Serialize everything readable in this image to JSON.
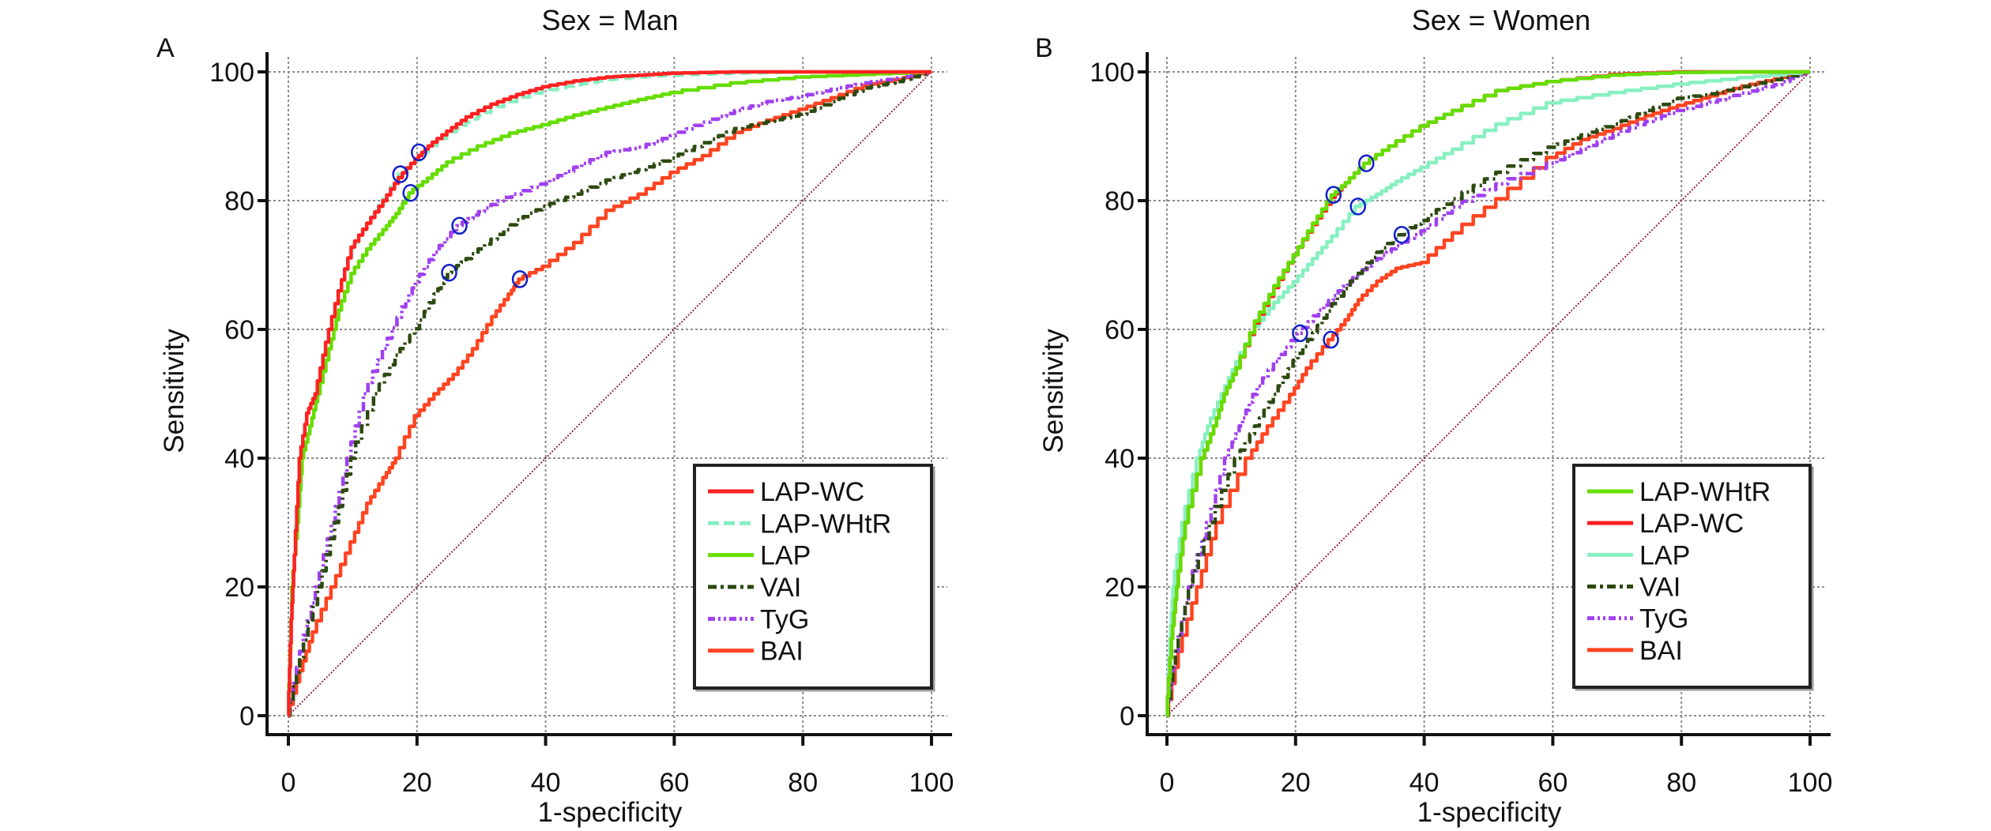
{
  "figure": {
    "panels": [
      {
        "letter": "A",
        "title": "Sex = Man"
      },
      {
        "letter": "B",
        "title": "Sex = Women"
      }
    ]
  },
  "chart_data": [
    {
      "type": "line",
      "panel": "A",
      "title": "Sex = Man",
      "xlabel": "1-specificity",
      "ylabel": "Sensitivity",
      "xlim": [
        0,
        100
      ],
      "ylim": [
        0,
        100
      ],
      "xticks": [
        0,
        20,
        40,
        60,
        80,
        100
      ],
      "yticks": [
        0,
        20,
        40,
        60,
        80,
        100
      ],
      "grid": true,
      "legend_position": "bottom-right",
      "reference_line": {
        "name": "chance",
        "x": [
          0,
          100
        ],
        "y": [
          0,
          100
        ],
        "color": "#8b1a3a"
      },
      "series": [
        {
          "name": "LAP-WC",
          "color": "#ff2222",
          "style": "solid",
          "x": [
            0,
            0.5,
            1,
            1.8,
            3,
            4.3,
            6,
            8,
            10,
            12.5,
            15,
            17.4,
            20,
            22,
            25,
            28,
            32,
            36,
            40,
            45,
            50,
            55,
            60,
            70,
            80,
            90,
            100
          ],
          "y": [
            0,
            15,
            25,
            40,
            47,
            50,
            58,
            66,
            72.8,
            76.5,
            80,
            83.6,
            86.5,
            88.5,
            90.8,
            93,
            95,
            96.5,
            97.7,
            98.6,
            99.2,
            99.5,
            99.8,
            100,
            100,
            100,
            100
          ],
          "cutoff": {
            "x": 20.3,
            "y": 87.5
          }
        },
        {
          "name": "LAP-WHtR",
          "color": "#88eec0",
          "style": "dashed",
          "x": [
            0,
            0.5,
            1,
            1.8,
            3,
            4.3,
            6,
            8,
            10,
            12.5,
            15,
            17.4,
            20,
            22,
            25,
            28,
            32,
            36,
            40,
            45,
            50,
            55,
            60,
            70,
            80,
            90,
            100
          ],
          "y": [
            0,
            16,
            26,
            40,
            47,
            50,
            58,
            66,
            72.5,
            76.5,
            80.2,
            84.1,
            86.2,
            88,
            90.2,
            92.2,
            94.2,
            95.8,
            97,
            98,
            98.8,
            99.2,
            99.5,
            99.8,
            100,
            100,
            100
          ],
          "cutoff": {
            "x": 17.4,
            "y": 84.1
          }
        },
        {
          "name": "LAP",
          "color": "#66dd00",
          "style": "solid",
          "x": [
            0,
            0.6,
            1.5,
            2.2,
            3.5,
            4.7,
            6.5,
            8,
            10,
            12.5,
            15,
            17,
            19,
            22,
            25,
            30,
            35,
            40,
            45,
            50,
            55,
            60,
            70,
            80,
            90,
            100
          ],
          "y": [
            0,
            20,
            30,
            40,
            45,
            50,
            57,
            63,
            68.7,
            72.5,
            75.5,
            78,
            81.2,
            83.5,
            86,
            88.5,
            90.5,
            91.8,
            93.3,
            94.5,
            95.7,
            96.8,
            98.3,
            99.2,
            99.6,
            100
          ],
          "cutoff": {
            "x": 19.0,
            "y": 81.2
          }
        },
        {
          "name": "VAI",
          "color": "#2d4a10",
          "style": "dashdot",
          "x": [
            0,
            2,
            4.9,
            7.5,
            10,
            13.7,
            17,
            20,
            23,
            25,
            28,
            32,
            36,
            40,
            45,
            50,
            55,
            60,
            65,
            70,
            75,
            80,
            85,
            90,
            95,
            100
          ],
          "y": [
            0,
            9,
            20,
            30,
            40,
            50,
            56,
            60.1,
            65.5,
            68.8,
            71,
            74,
            77,
            79.1,
            81,
            83.2,
            84.8,
            86.6,
            89,
            91.2,
            92.3,
            93.4,
            95.4,
            97.5,
            98.5,
            100
          ],
          "cutoff": {
            "x": 25.0,
            "y": 68.8
          }
        },
        {
          "name": "TyG",
          "color": "#a040f0",
          "style": "dashdotdot",
          "x": [
            0,
            2,
            4.5,
            7,
            9.4,
            12,
            15,
            18,
            20,
            23,
            26.6,
            30,
            34,
            40,
            45,
            50,
            55,
            60,
            65,
            70,
            75,
            80,
            85,
            90,
            95,
            100
          ],
          "y": [
            0,
            10,
            20,
            30,
            40,
            50,
            57,
            63.5,
            67.4,
            72,
            76.1,
            78.3,
            80.5,
            82.6,
            85.2,
            87.5,
            88.3,
            90.1,
            92.2,
            94,
            95.4,
            96.2,
            97.3,
            98.3,
            99,
            100
          ],
          "cutoff": {
            "x": 26.6,
            "y": 76.1
          }
        },
        {
          "name": "BAI",
          "color": "#ff4422",
          "style": "solid",
          "x": [
            0,
            2,
            4,
            7,
            10,
            12.5,
            15,
            16.9,
            20,
            23,
            26,
            29,
            32,
            34.5,
            36,
            40,
            45,
            50,
            55,
            60,
            65,
            70,
            75,
            80,
            85,
            90,
            95,
            100
          ],
          "y": [
            0,
            7,
            13,
            20,
            27,
            33,
            37,
            40,
            46.6,
            50,
            53,
            57,
            62,
            65.5,
            67.8,
            69.8,
            73.5,
            78.5,
            81,
            84.4,
            87,
            90.6,
            92.5,
            94.2,
            96,
            97.9,
            98.8,
            100
          ],
          "cutoff": {
            "x": 36.0,
            "y": 67.8
          }
        }
      ]
    },
    {
      "type": "line",
      "panel": "B",
      "title": "Sex = Women",
      "xlabel": "1-specificity",
      "ylabel": "Sensitivity",
      "xlim": [
        0,
        100
      ],
      "ylim": [
        0,
        100
      ],
      "xticks": [
        0,
        20,
        40,
        60,
        80,
        100
      ],
      "yticks": [
        0,
        20,
        40,
        60,
        80,
        100
      ],
      "grid": true,
      "legend_position": "bottom-right",
      "reference_line": {
        "name": "chance",
        "x": [
          0,
          100
        ],
        "y": [
          0,
          100
        ],
        "color": "#8b1a3a"
      },
      "series": [
        {
          "name": "LAP-WHtR",
          "color": "#66dd00",
          "style": "solid",
          "x": [
            0,
            0.8,
            1.6,
            3,
            5.6,
            7.5,
            9.1,
            11,
            14,
            17,
            20,
            23,
            25.9,
            28,
            31,
            35,
            40,
            45,
            52,
            60,
            70,
            80,
            90,
            100
          ],
          "y": [
            0,
            12,
            20,
            30,
            40,
            45,
            50,
            54,
            61.3,
            66.8,
            71.6,
            76.5,
            80.9,
            82.8,
            85.8,
            88.5,
            91.6,
            94,
            97.1,
            98.5,
            99.5,
            99.9,
            100,
            100
          ],
          "cutoff": {
            "x": 25.9,
            "y": 80.9
          }
        },
        {
          "name": "LAP-WC",
          "color": "#ff2020",
          "style": "solid",
          "x": [
            0,
            0.8,
            1.6,
            3,
            5.6,
            7.5,
            9.1,
            11,
            14,
            17,
            20,
            23,
            25.9,
            28,
            31,
            35,
            40,
            45,
            52,
            60,
            70,
            80,
            90,
            100
          ],
          "y": [
            0,
            12,
            20,
            30,
            40,
            45,
            50,
            54,
            61,
            66.5,
            71.6,
            76.3,
            80.5,
            82.8,
            85.8,
            88.5,
            91.6,
            94,
            97.1,
            98.5,
            99.6,
            100,
            100,
            100
          ],
          "cutoff": {
            "x": 31.0,
            "y": 85.8
          }
        },
        {
          "name": "LAP",
          "color": "#88f0c0",
          "style": "solid",
          "x": [
            0,
            0.5,
            1,
            2.5,
            4.9,
            6.5,
            8.7,
            11,
            14,
            17,
            20,
            23,
            26,
            29.7,
            33,
            36,
            40,
            45,
            52,
            60,
            70,
            80,
            90,
            100
          ],
          "y": [
            0,
            12,
            20,
            30,
            40,
            45,
            50,
            55,
            60.5,
            64.2,
            67.4,
            71,
            74.5,
            79.1,
            81,
            83,
            85.2,
            88,
            91.9,
            95.2,
            96.8,
            98.1,
            99.1,
            100
          ],
          "cutoff": {
            "x": 29.7,
            "y": 79.1
          }
        },
        {
          "name": "VAI",
          "color": "#2d4a10",
          "style": "dashdot",
          "x": [
            0,
            1.5,
            3.6,
            7,
            11,
            14,
            16.9,
            20,
            23,
            26,
            30,
            33,
            36.5,
            40,
            45,
            52,
            60,
            65,
            70,
            75,
            80,
            85,
            90,
            95,
            100
          ],
          "y": [
            0,
            10,
            20,
            30,
            40,
            45,
            49.9,
            55.2,
            59.5,
            64,
            68.7,
            72,
            74.7,
            76.9,
            80.3,
            84.4,
            88.3,
            90.2,
            91.9,
            94,
            95.9,
            96.6,
            97.7,
            98.8,
            100
          ],
          "cutoff": {
            "x": 36.5,
            "y": 74.7
          }
        },
        {
          "name": "TyG",
          "color": "#a040f0",
          "style": "dashdotdot",
          "x": [
            0,
            1.5,
            3.6,
            6.5,
            9.3,
            11.5,
            13.6,
            17,
            20.7,
            24,
            27,
            30,
            33,
            36,
            40,
            45,
            52,
            60,
            65,
            70,
            75,
            80,
            85,
            90,
            95,
            100
          ],
          "y": [
            0,
            10,
            20,
            30,
            40,
            45,
            49.9,
            55,
            59.4,
            63,
            66,
            68.7,
            71,
            73,
            75.3,
            79,
            82.6,
            85.8,
            88,
            90.3,
            92.3,
            94,
            95.3,
            96.7,
            98,
            100
          ],
          "cutoff": {
            "x": 20.7,
            "y": 59.4
          }
        },
        {
          "name": "BAI",
          "color": "#ff4422",
          "style": "solid",
          "x": [
            0,
            2,
            5,
            8,
            12.8,
            16,
            19.5,
            22,
            25.5,
            28,
            30,
            33,
            36,
            40,
            45,
            52,
            60,
            65,
            70,
            75,
            80,
            85,
            90,
            95,
            100
          ],
          "y": [
            0,
            10,
            20,
            30,
            40,
            45,
            49.9,
            54,
            58.4,
            61.5,
            64.6,
            67.5,
            69.5,
            70.4,
            75,
            80.3,
            86.7,
            89.5,
            91.2,
            93.2,
            94.8,
            96.3,
            97.8,
            98.9,
            100
          ],
          "cutoff": {
            "x": 25.5,
            "y": 58.4
          }
        }
      ]
    }
  ]
}
